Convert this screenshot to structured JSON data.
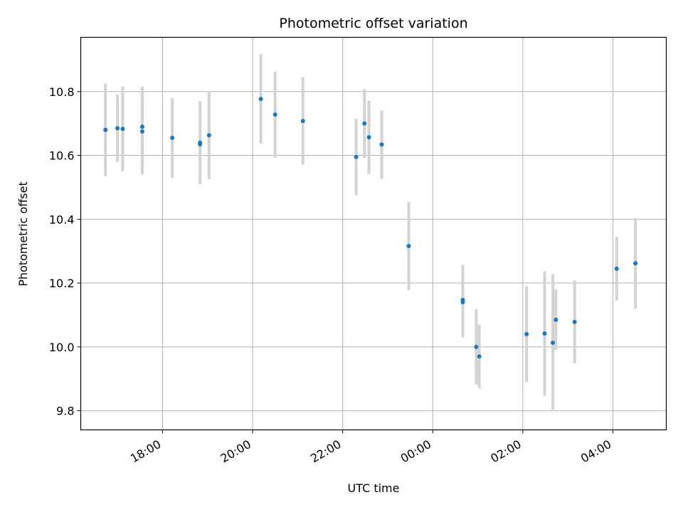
{
  "chart_data": {
    "type": "scatter",
    "title": "Photometric offset variation",
    "xlabel": "UTC time",
    "ylabel": "Photometric offset",
    "x_tick_labels": [
      "18:00",
      "20:00",
      "22:00",
      "00:00",
      "02:00",
      "04:00"
    ],
    "x_tick_hours": [
      18,
      20,
      22,
      24,
      26,
      28
    ],
    "x_range_hours": [
      16.185,
      29.185
    ],
    "y_ticks": [
      9.8,
      10.0,
      10.2,
      10.4,
      10.6,
      10.8
    ],
    "y_tick_labels": [
      "9.8",
      "10.0",
      "10.2",
      "10.4",
      "10.6",
      "10.8"
    ],
    "ylim": [
      9.74,
      10.97
    ],
    "grid": true,
    "colors": {
      "point": "#1f77b4",
      "errorbar": "#d3d3d3",
      "grid": "#b0b0b0"
    },
    "points": [
      {
        "time": "16:44",
        "y": 10.68,
        "err": 0.145
      },
      {
        "time": "17:00",
        "y": 10.685,
        "err": 0.105
      },
      {
        "time": "17:07",
        "y": 10.683,
        "err": 0.133
      },
      {
        "time": "17:33",
        "y": 10.69,
        "err": 0.125
      },
      {
        "time": "17:33",
        "y": 10.675,
        "err": 0.135
      },
      {
        "time": "18:13",
        "y": 10.655,
        "err": 0.125
      },
      {
        "time": "18:50",
        "y": 10.64,
        "err": 0.13
      },
      {
        "time": "18:50",
        "y": 10.635,
        "err": 0.125
      },
      {
        "time": "19:02",
        "y": 10.663,
        "err": 0.138
      },
      {
        "time": "20:11",
        "y": 10.777,
        "err": 0.14
      },
      {
        "time": "20:30",
        "y": 10.728,
        "err": 0.135
      },
      {
        "time": "21:07",
        "y": 10.708,
        "err": 0.137
      },
      {
        "time": "22:18",
        "y": 10.595,
        "err": 0.12
      },
      {
        "time": "22:29",
        "y": 10.7,
        "err": 0.108
      },
      {
        "time": "22:35",
        "y": 10.657,
        "err": 0.115
      },
      {
        "time": "22:52",
        "y": 10.634,
        "err": 0.107
      },
      {
        "time": "23:28",
        "y": 10.316,
        "err": 0.138
      },
      {
        "time": "00:40",
        "y": 10.147,
        "err": 0.11
      },
      {
        "time": "00:40",
        "y": 10.14,
        "err": 0.11
      },
      {
        "time": "00:58",
        "y": 10.0,
        "err": 0.118
      },
      {
        "time": "01:02",
        "y": 9.97,
        "err": 0.1
      },
      {
        "time": "02:05",
        "y": 10.04,
        "err": 0.15
      },
      {
        "time": "02:29",
        "y": 10.042,
        "err": 0.195
      },
      {
        "time": "02:40",
        "y": 10.013,
        "err": 0.215
      },
      {
        "time": "02:44",
        "y": 10.085,
        "err": 0.095
      },
      {
        "time": "03:09",
        "y": 10.078,
        "err": 0.13
      },
      {
        "time": "04:05",
        "y": 10.245,
        "err": 0.1
      },
      {
        "time": "04:30",
        "y": 10.262,
        "err": 0.142
      }
    ]
  }
}
